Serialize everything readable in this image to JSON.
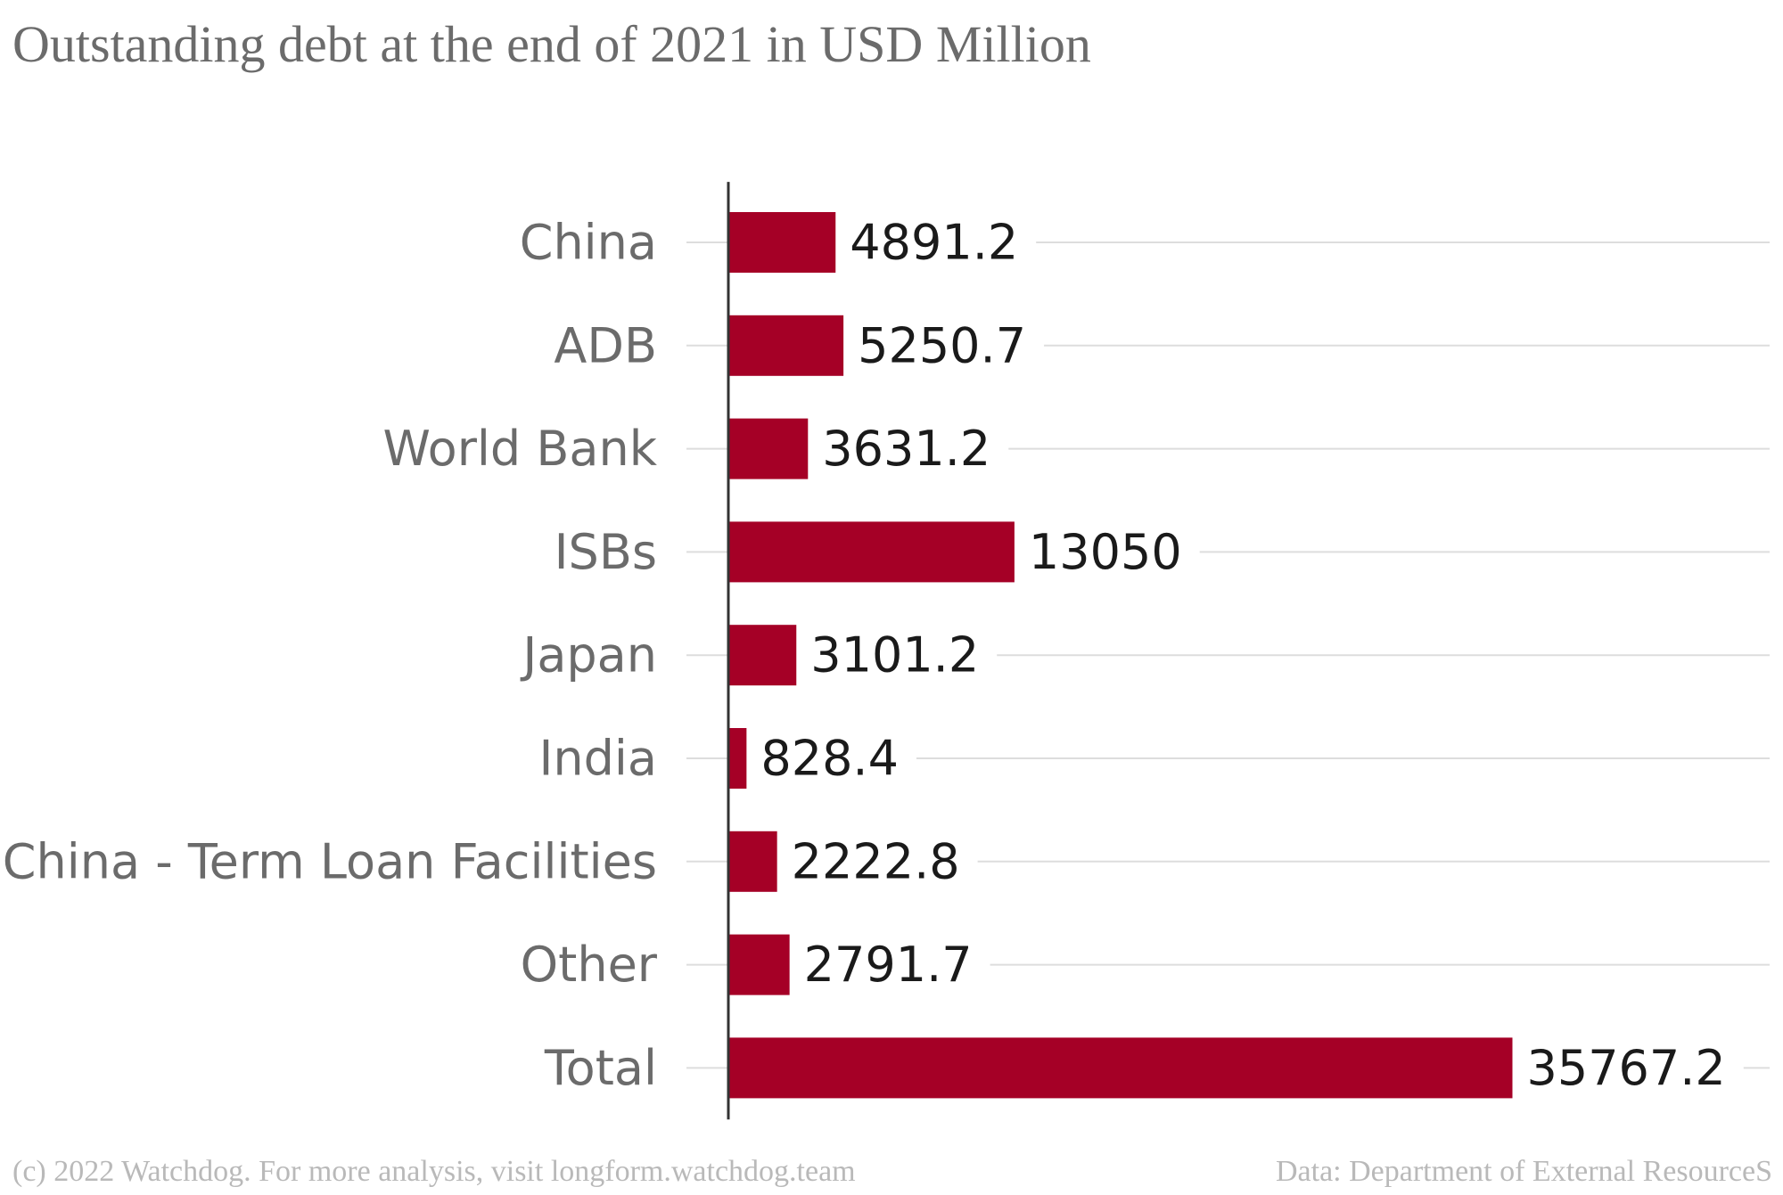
{
  "chart_data": {
    "type": "bar",
    "orientation": "horizontal",
    "title": "Outstanding debt at the end of 2021 in USD Million",
    "categories": [
      "China",
      "ADB",
      "World Bank",
      "ISBs",
      "Japan",
      "India",
      "China - Term Loan Facilities",
      "Other",
      "Total"
    ],
    "values": [
      4891.2,
      5250.7,
      3631.2,
      13050,
      3101.2,
      828.4,
      2222.8,
      2791.7,
      35767.2
    ],
    "value_labels": [
      "4891.2",
      "5250.7",
      "3631.2",
      "13050",
      "3101.2",
      "828.4",
      "2222.8",
      "2791.7",
      "35767.2"
    ],
    "xlim": [
      0,
      47500
    ],
    "grid": true,
    "bar_color": "#a50026",
    "label_color": "#6b6b6b",
    "value_label_color": "#1a1a1a",
    "grid_color": "#dddddd"
  },
  "footer": {
    "credit": "(c) 2022 Watchdog. For more analysis, visit longform.watchdog.team",
    "source": "Data: Department of External ResourceS"
  }
}
